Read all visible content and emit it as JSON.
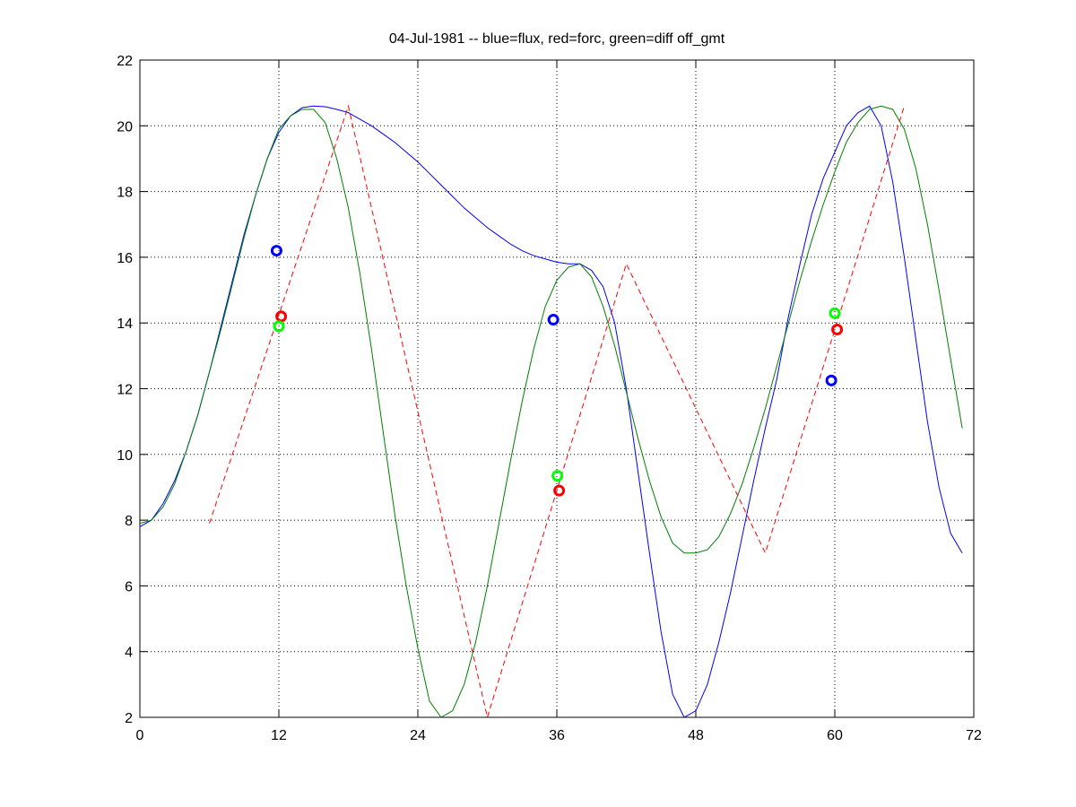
{
  "chart_data": {
    "type": "line",
    "title": "04-Jul-1981 -- blue=flux, red=forc, green=diff off_gmt",
    "xlim": [
      0,
      72
    ],
    "xticks": [
      0,
      12,
      24,
      36,
      48,
      60,
      72
    ],
    "ylim": [
      2,
      22
    ],
    "yticks": [
      2,
      4,
      6,
      8,
      10,
      12,
      14,
      16,
      18,
      20,
      22
    ],
    "grid": true,
    "series": [
      {
        "color": "#0000ff",
        "style": "solid",
        "x": [
          0,
          1,
          2,
          3,
          4,
          5,
          6,
          7,
          8,
          9,
          10,
          11,
          12,
          13,
          14,
          15,
          16,
          17,
          18,
          19,
          20,
          21,
          22,
          23,
          24,
          25,
          26,
          27,
          28,
          29,
          30,
          31,
          32,
          33,
          34,
          35,
          36,
          37,
          38,
          39,
          40,
          41,
          42,
          43,
          44,
          45,
          46,
          47,
          48,
          49,
          50,
          51,
          52,
          53,
          54,
          55,
          56,
          57,
          58,
          59,
          60,
          61,
          62,
          63,
          64,
          65,
          66,
          67,
          68,
          69,
          70,
          71
        ],
        "values": [
          7.8,
          8.0,
          8.5,
          9.2,
          10.1,
          11.2,
          12.5,
          13.9,
          15.3,
          16.7,
          17.9,
          19.0,
          19.8,
          20.3,
          20.55,
          20.6,
          20.58,
          20.5,
          20.4,
          20.2,
          20.0,
          19.75,
          19.5,
          19.2,
          18.9,
          18.55,
          18.2,
          17.85,
          17.5,
          17.2,
          16.9,
          16.65,
          16.4,
          16.2,
          16.05,
          15.95,
          15.85,
          15.8,
          15.8,
          15.6,
          15.1,
          14.0,
          12.0,
          9.5,
          7.0,
          4.6,
          2.7,
          2.0,
          2.2,
          3.0,
          4.3,
          5.8,
          7.5,
          9.2,
          10.8,
          12.3,
          14.2,
          15.8,
          17.3,
          18.4,
          19.2,
          20.0,
          20.4,
          20.6,
          20.0,
          18.3,
          16.0,
          13.5,
          11.0,
          9.0,
          7.6,
          7.0
        ]
      },
      {
        "color": "#007f00",
        "style": "solid",
        "x": [
          0,
          1,
          2,
          3,
          4,
          5,
          6,
          7,
          8,
          9,
          10,
          11,
          12,
          13,
          14,
          15,
          16,
          17,
          18,
          19,
          20,
          21,
          22,
          23,
          24,
          25,
          26,
          27,
          28,
          29,
          30,
          31,
          32,
          33,
          34,
          35,
          36,
          37,
          38,
          39,
          40,
          41,
          42,
          43,
          44,
          45,
          46,
          47,
          48,
          49,
          50,
          51,
          52,
          53,
          54,
          55,
          56,
          57,
          58,
          59,
          60,
          61,
          62,
          63,
          64,
          65,
          66,
          67,
          68,
          69,
          70,
          71
        ],
        "values": [
          7.9,
          8.0,
          8.4,
          9.1,
          10.1,
          11.2,
          12.5,
          13.8,
          15.2,
          16.6,
          17.9,
          19.0,
          19.9,
          20.3,
          20.5,
          20.5,
          20.1,
          19.0,
          17.5,
          15.5,
          13.2,
          10.7,
          8.2,
          6.0,
          4.1,
          2.5,
          2.0,
          2.2,
          3.0,
          4.3,
          6.0,
          7.9,
          9.8,
          11.6,
          13.2,
          14.5,
          15.3,
          15.7,
          15.8,
          15.4,
          14.5,
          13.3,
          11.9,
          10.5,
          9.2,
          8.1,
          7.3,
          7.0,
          7.0,
          7.1,
          7.5,
          8.2,
          9.1,
          10.2,
          11.4,
          12.7,
          14.0,
          15.3,
          16.5,
          17.6,
          18.6,
          19.5,
          20.1,
          20.5,
          20.6,
          20.5,
          19.9,
          18.7,
          17.0,
          15.0,
          12.9,
          10.8
        ]
      },
      {
        "color": "#ff0000",
        "style": "dashed",
        "x": [
          6,
          18,
          30,
          42,
          54,
          66
        ],
        "values": [
          7.9,
          20.6,
          2.0,
          15.8,
          7.0,
          20.6
        ]
      },
      {
        "color": "#0000ff",
        "style": "marker",
        "x": [
          11.8,
          35.7,
          59.7
        ],
        "values": [
          16.2,
          14.1,
          12.25
        ]
      },
      {
        "color": "#ff0000",
        "style": "marker",
        "x": [
          12.2,
          36.2,
          60.2
        ],
        "values": [
          14.2,
          8.9,
          13.8
        ]
      },
      {
        "color": "#00ff00",
        "style": "marker",
        "x": [
          12.0,
          36.05,
          60.0
        ],
        "values": [
          13.9,
          9.35,
          14.3
        ]
      }
    ]
  }
}
